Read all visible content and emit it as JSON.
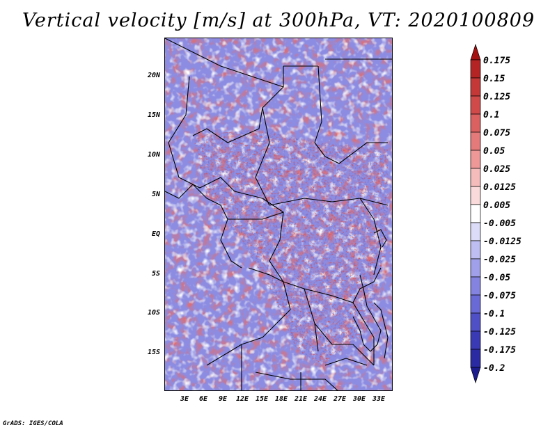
{
  "title": "Vertical velocity [m/s] at 300hPa, VT: 2020100809",
  "footer": "GrADS: IGES/COLA",
  "map": {
    "lat_labels": [
      "20N",
      "15N",
      "10N",
      "5N",
      "EQ",
      "5S",
      "10S",
      "15S"
    ],
    "lon_labels": [
      "3E",
      "6E",
      "9E",
      "12E",
      "15E",
      "18E",
      "21E",
      "24E",
      "27E",
      "30E",
      "33E"
    ]
  },
  "colorbar": {
    "labels": [
      "0.175",
      "0.15",
      "0.125",
      "0.1",
      "0.075",
      "0.05",
      "0.025",
      "0.0125",
      "0.005",
      "-0.005",
      "-0.0125",
      "-0.025",
      "-0.05",
      "-0.075",
      "-0.1",
      "-0.125",
      "-0.175",
      "-0.2"
    ],
    "colors": [
      "#a51010",
      "#b52424",
      "#c43838",
      "#d14a4a",
      "#db6060",
      "#e57a7a",
      "#ee9898",
      "#f5bcbc",
      "#fadada",
      "#ffffff",
      "#dcdcf8",
      "#bebef2",
      "#a0a0ea",
      "#8484e0",
      "#6a6ad6",
      "#5050c6",
      "#3a3ab4",
      "#2a2aa2",
      "#1c1c8e"
    ]
  }
}
